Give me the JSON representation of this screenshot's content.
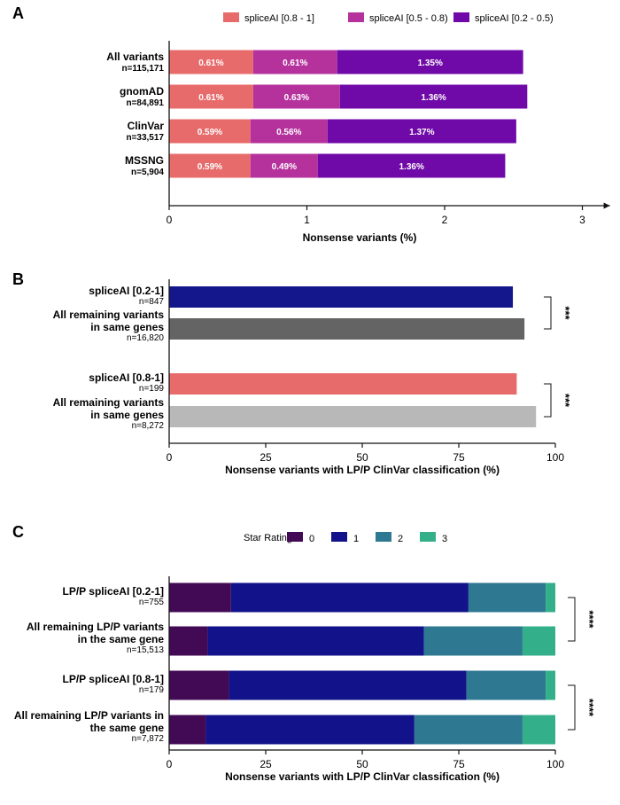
{
  "chart_data": [
    {
      "panel": "A",
      "type": "bar",
      "orientation": "horizontal",
      "stacked": true,
      "xlabel": "Nonsense variants (%)",
      "xlim": [
        0,
        3.2
      ],
      "xticks": [
        "0",
        "1",
        "2",
        "3"
      ],
      "legend": [
        "spliceAI [0.8 - 1]",
        "spliceAI [0.5 - 0.8)",
        "spliceAI [0.2 - 0.5)"
      ],
      "colors": [
        "#e86b6b",
        "#b5329d",
        "#6f0aa8"
      ],
      "categories": [
        {
          "name": "All variants",
          "n": "n=115,171"
        },
        {
          "name": "gnomAD",
          "n": "n=84,891"
        },
        {
          "name": "ClinVar",
          "n": "n=33,517"
        },
        {
          "name": "MSSNG",
          "n": "n=5,904"
        }
      ],
      "values": [
        [
          0.61,
          0.61,
          1.35
        ],
        [
          0.61,
          0.63,
          1.36
        ],
        [
          0.59,
          0.56,
          1.37
        ],
        [
          0.59,
          0.49,
          1.36
        ]
      ],
      "labels": [
        [
          "0.61%",
          "0.61%",
          "1.35%"
        ],
        [
          "0.61%",
          "0.63%",
          "1.36%"
        ],
        [
          "0.59%",
          "0.56%",
          "1.37%"
        ],
        [
          "0.59%",
          "0.49%",
          "1.36%"
        ]
      ]
    },
    {
      "panel": "B",
      "type": "bar",
      "orientation": "horizontal",
      "xlabel": "Nonsense variants with LP/P ClinVar classification (%)",
      "xlim": [
        0,
        100
      ],
      "xticks": [
        "0",
        "25",
        "50",
        "75",
        "100"
      ],
      "categories": [
        {
          "lines": [
            "spliceAI [0.2-1]"
          ],
          "n": "n=847"
        },
        {
          "lines": [
            "All remaining variants",
            "in same genes"
          ],
          "n": "n=16,820"
        },
        {
          "lines": [
            "spliceAI [0.8-1]"
          ],
          "n": "n=199"
        },
        {
          "lines": [
            "All remaining variants",
            "in same genes"
          ],
          "n": "n=8,272"
        }
      ],
      "values": [
        89,
        92,
        90,
        95
      ],
      "colors": [
        "#14168c",
        "#646464",
        "#e86b6b",
        "#b8b8b8"
      ],
      "significance": [
        "***",
        "***"
      ]
    },
    {
      "panel": "C",
      "type": "bar",
      "orientation": "horizontal",
      "stacked": true,
      "xlabel": "Nonsense variants with LP/P ClinVar classification (%)",
      "xlim": [
        0,
        100
      ],
      "xticks": [
        "0",
        "25",
        "50",
        "75",
        "100"
      ],
      "legend_title": "Star Rating",
      "legend": [
        "0",
        "1",
        "2",
        "3"
      ],
      "colors": [
        "#420a55",
        "#12128a",
        "#2e7991",
        "#33b08a"
      ],
      "categories": [
        {
          "lines": [
            "LP/P spliceAI [0.2-1]"
          ],
          "n": "n=755"
        },
        {
          "lines": [
            "All remaining LP/P variants",
            "in the same gene"
          ],
          "n": "n=15,513"
        },
        {
          "lines": [
            "LP/P spliceAI [0.8-1]"
          ],
          "n": "n=179"
        },
        {
          "lines": [
            "All remaining LP/P variants in",
            "the same gene"
          ],
          "n": "n=7,872"
        }
      ],
      "values": [
        [
          16,
          61.5,
          20,
          2.5
        ],
        [
          10,
          56,
          25.5,
          8.5
        ],
        [
          15.5,
          61.5,
          20.5,
          2.5
        ],
        [
          9.5,
          54,
          28,
          8.5
        ]
      ],
      "significance": [
        "****",
        "****"
      ]
    }
  ]
}
